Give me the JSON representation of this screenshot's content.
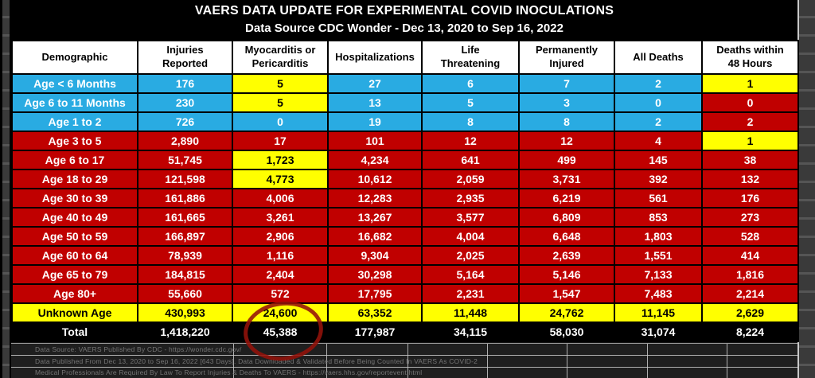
{
  "title": "VAERS DATA UPDATE FOR EXPERIMENTAL COVID INOCULATIONS",
  "subtitle": "Data Source CDC Wonder - Dec 13, 2020 to Sep 16, 2022",
  "palette": {
    "cyan": "#29abe2",
    "red": "#c00000",
    "yellow": "#ffff00",
    "black": "#000000",
    "white_text": "#ffffff",
    "dark_text": "#000000",
    "annotation_red": "#94120a"
  },
  "table": {
    "headers": [
      "Demographic",
      "Injuries\nReported",
      "Myocarditis or\nPericarditis",
      "Hospitalizations",
      "Life\nThreatening",
      "Permanently\nInjured",
      "All Deaths",
      "Deaths within\n48 Hours"
    ],
    "rows": [
      {
        "label": "Age < 6 Months",
        "label_color": "cyan",
        "values": [
          "176",
          "5",
          "27",
          "6",
          "7",
          "2",
          "1"
        ],
        "value_colors": [
          "cyan",
          "yellow",
          "cyan",
          "cyan",
          "cyan",
          "cyan",
          "yellow"
        ]
      },
      {
        "label": "Age 6 to 11 Months",
        "label_color": "cyan",
        "values": [
          "230",
          "5",
          "13",
          "5",
          "3",
          "0",
          "0"
        ],
        "value_colors": [
          "cyan",
          "yellow",
          "cyan",
          "cyan",
          "cyan",
          "cyan",
          "red"
        ]
      },
      {
        "label": "Age 1 to 2",
        "label_color": "cyan",
        "values": [
          "726",
          "0",
          "19",
          "8",
          "8",
          "2",
          "2"
        ],
        "value_colors": [
          "cyan",
          "cyan",
          "cyan",
          "cyan",
          "cyan",
          "cyan",
          "red"
        ]
      },
      {
        "label": "Age 3 to 5",
        "label_color": "red",
        "values": [
          "2,890",
          "17",
          "101",
          "12",
          "12",
          "4",
          "1"
        ],
        "value_colors": [
          "red",
          "red",
          "red",
          "red",
          "red",
          "red",
          "yellow"
        ]
      },
      {
        "label": "Age 6 to 17",
        "label_color": "red",
        "values": [
          "51,745",
          "1,723",
          "4,234",
          "641",
          "499",
          "145",
          "38"
        ],
        "value_colors": [
          "red",
          "yellow",
          "red",
          "red",
          "red",
          "red",
          "red"
        ]
      },
      {
        "label": "Age 18 to 29",
        "label_color": "red",
        "values": [
          "121,598",
          "4,773",
          "10,612",
          "2,059",
          "3,731",
          "392",
          "132"
        ],
        "value_colors": [
          "red",
          "yellow",
          "red",
          "red",
          "red",
          "red",
          "red"
        ]
      },
      {
        "label": "Age 30 to 39",
        "label_color": "red",
        "values": [
          "161,886",
          "4,006",
          "12,283",
          "2,935",
          "6,219",
          "561",
          "176"
        ],
        "value_colors": [
          "red",
          "red",
          "red",
          "red",
          "red",
          "red",
          "red"
        ]
      },
      {
        "label": "Age 40 to 49",
        "label_color": "red",
        "values": [
          "161,665",
          "3,261",
          "13,267",
          "3,577",
          "6,809",
          "853",
          "273"
        ],
        "value_colors": [
          "red",
          "red",
          "red",
          "red",
          "red",
          "red",
          "red"
        ]
      },
      {
        "label": "Age 50 to 59",
        "label_color": "red",
        "values": [
          "166,897",
          "2,906",
          "16,682",
          "4,004",
          "6,648",
          "1,803",
          "528"
        ],
        "value_colors": [
          "red",
          "red",
          "red",
          "red",
          "red",
          "red",
          "red"
        ]
      },
      {
        "label": "Age 60 to 64",
        "label_color": "red",
        "values": [
          "78,939",
          "1,116",
          "9,304",
          "2,025",
          "2,639",
          "1,551",
          "414"
        ],
        "value_colors": [
          "red",
          "red",
          "red",
          "red",
          "red",
          "red",
          "red"
        ]
      },
      {
        "label": "Age 65 to 79",
        "label_color": "red",
        "values": [
          "184,815",
          "2,404",
          "30,298",
          "5,164",
          "5,146",
          "7,133",
          "1,816"
        ],
        "value_colors": [
          "red",
          "red",
          "red",
          "red",
          "red",
          "red",
          "red"
        ]
      },
      {
        "label": "Age 80+",
        "label_color": "red",
        "values": [
          "55,660",
          "572",
          "17,795",
          "2,231",
          "1,547",
          "7,483",
          "2,214"
        ],
        "value_colors": [
          "red",
          "red",
          "red",
          "red",
          "red",
          "red",
          "red"
        ]
      },
      {
        "label": "Unknown Age",
        "label_color": "yellow",
        "values": [
          "430,993",
          "24,600",
          "63,352",
          "11,448",
          "24,762",
          "11,145",
          "2,629"
        ],
        "value_colors": [
          "yellow",
          "yellow",
          "yellow",
          "yellow",
          "yellow",
          "yellow",
          "yellow"
        ]
      },
      {
        "label": "Total",
        "label_color": "black",
        "values": [
          "1,418,220",
          "45,388",
          "177,987",
          "34,115",
          "58,030",
          "31,074",
          "8,224"
        ],
        "value_colors": [
          "black",
          "black",
          "black",
          "black",
          "black",
          "black",
          "black"
        ]
      }
    ]
  },
  "annotation": {
    "shape": "hand-drawn-ellipse",
    "circled_value": "45,388",
    "circled_cell": "Total / Myocarditis or Pericarditis"
  },
  "footnotes": [
    "Data Source: VAERS Published By CDC - https://wonder.cdc.gov/",
    "Data Published From Dec 13, 2020 to Sep 16, 2022 [643 Days]. Data Downloaded & Validated Before Being Counted In VAERS As COVID-2",
    "Medical Professionals Are Required By Law To Report Injuries & Deaths To VAERS - https://vaers.hhs.gov/reportevent.html"
  ]
}
